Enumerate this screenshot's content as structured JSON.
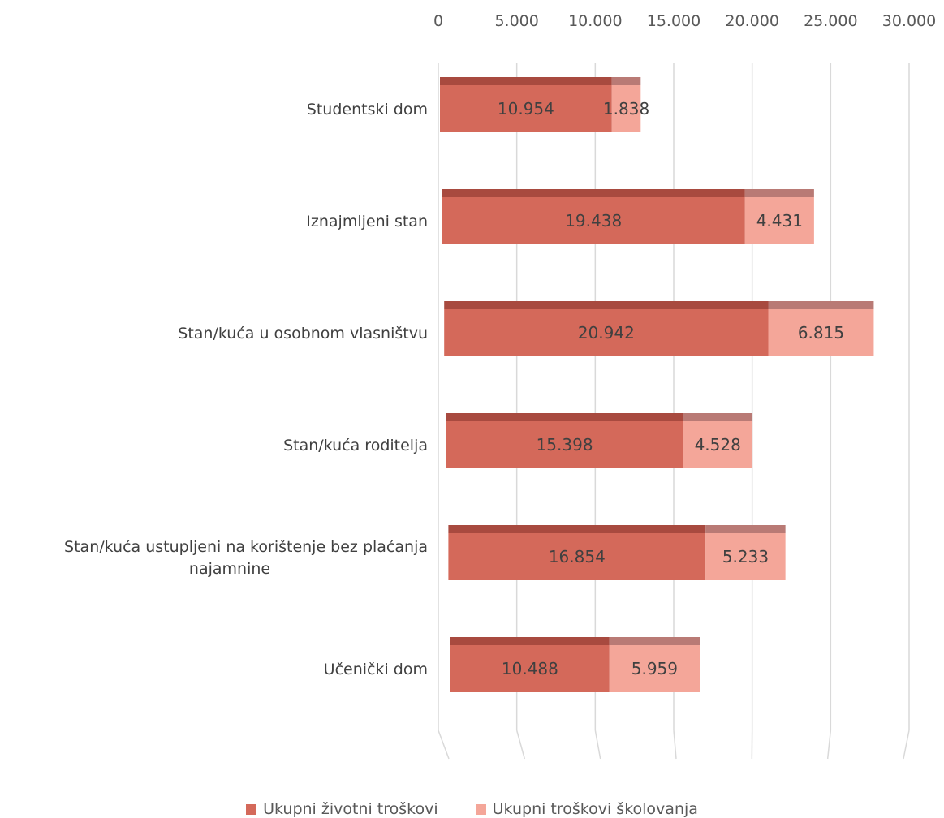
{
  "chart_data": {
    "type": "bar",
    "orientation": "horizontal",
    "stacked": true,
    "categories": [
      "Studentski dom",
      "Iznajmljeni stan",
      "Stan/kuća u osobnom vlasništvu",
      "Stan/kuća roditelja",
      "Stan/kuća ustupljeni na korištenje bez plaćanja najamnine",
      "Učenički dom"
    ],
    "category_display": [
      [
        "Studentski dom"
      ],
      [
        "Iznajmljeni stan"
      ],
      [
        "Stan/kuća u osobnom vlasništvu"
      ],
      [
        "Stan/kuća roditelja"
      ],
      [
        "Stan/kuća ustupljeni na korištenje bez plaćanja",
        "najamnine"
      ],
      [
        "Učenički dom"
      ]
    ],
    "series": [
      {
        "name": "Ukupni životni troškovi",
        "values": [
          10954,
          19438,
          20942,
          15398,
          16854,
          10488
        ],
        "labels": [
          "10.954",
          "19.438",
          "20.942",
          "15.398",
          "16.854",
          "10.488"
        ],
        "color": "#d4695a"
      },
      {
        "name": "Ukupni troškovi školovanja",
        "values": [
          1838,
          4431,
          6815,
          4528,
          5233,
          5959
        ],
        "labels": [
          "1.838",
          "4.431",
          "6.815",
          "4.528",
          "5.233",
          "5.959"
        ],
        "color": "#f4a699"
      }
    ],
    "x_ticks": [
      0,
      5000,
      10000,
      15000,
      20000,
      25000,
      30000
    ],
    "x_tick_labels": [
      "0",
      "5.000",
      "10.000",
      "15.000",
      "20.000",
      "25.000",
      "30.000"
    ],
    "xlim": [
      0,
      30000
    ],
    "axis_position": "top",
    "grid": true,
    "legend_position": "bottom",
    "title": "",
    "xlabel": "",
    "ylabel": ""
  }
}
